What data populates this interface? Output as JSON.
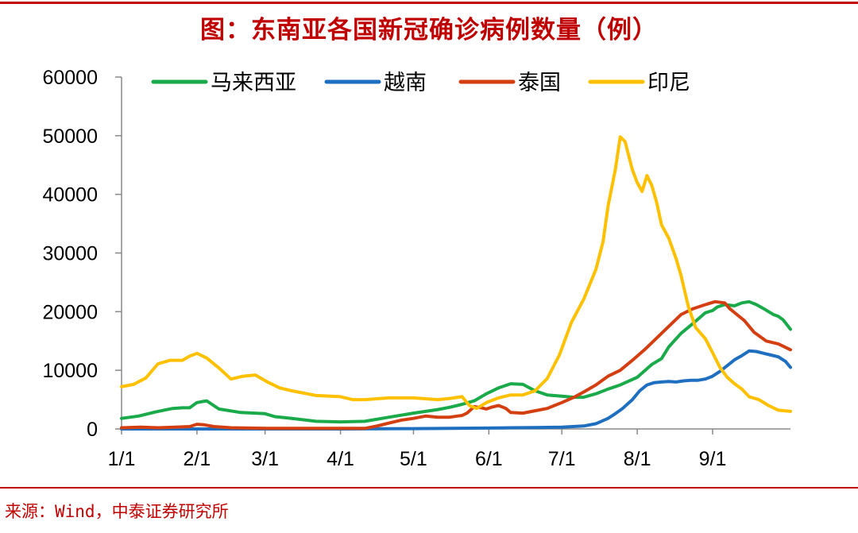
{
  "title": "图：东南亚各国新冠确诊病例数量（例）",
  "source": "来源：Wind，中泰证券研究所",
  "colors": {
    "accent": "#c00000",
    "马来西亚": "#1aaa4a",
    "越南": "#1f6fc0",
    "泰国": "#d43f12",
    "印尼": "#ffc000"
  },
  "chart_data": {
    "type": "line",
    "title": "图：东南亚各国新冠确诊病例数量（例）",
    "xlabel": "",
    "ylabel": "",
    "ylim": [
      0,
      60000
    ],
    "yticks": [
      0,
      10000,
      20000,
      30000,
      40000,
      50000,
      60000
    ],
    "ytick_labels": [
      "0",
      "10000",
      "20000",
      "30000",
      "40000",
      "50000",
      "60000"
    ],
    "xlim": [
      0,
      275
    ],
    "xticks": [
      0,
      31,
      59,
      90,
      120,
      151,
      181,
      212,
      243
    ],
    "xtick_labels": [
      "1/1",
      "2/1",
      "3/1",
      "4/1",
      "5/1",
      "6/1",
      "7/1",
      "8/1",
      "9/1"
    ],
    "legend_position": "top",
    "series": [
      {
        "name": "马来西亚",
        "color": "#1aaa4a",
        "x": [
          0,
          7,
          14,
          21,
          25,
          28,
          31,
          35,
          40,
          49,
          59,
          63,
          70,
          80,
          90,
          100,
          110,
          120,
          130,
          135,
          140,
          145,
          150,
          155,
          160,
          165,
          170,
          175,
          181,
          186,
          190,
          195,
          200,
          205,
          212,
          218,
          222,
          225,
          230,
          235,
          240,
          243,
          245,
          248,
          252,
          255,
          258,
          261,
          264,
          266,
          268,
          270,
          272,
          275
        ],
        "values": [
          1800,
          2200,
          2900,
          3500,
          3600,
          3600,
          4500,
          4800,
          3400,
          2800,
          2600,
          2100,
          1800,
          1300,
          1200,
          1300,
          2000,
          2700,
          3300,
          3700,
          4200,
          4800,
          6000,
          7000,
          7700,
          7600,
          6500,
          5800,
          5600,
          5400,
          5400,
          6000,
          6800,
          7500,
          8800,
          11000,
          12000,
          14000,
          16300,
          18000,
          19800,
          20200,
          20800,
          21200,
          21000,
          21500,
          21700,
          21200,
          20500,
          20000,
          19500,
          19200,
          18600,
          17000
        ]
      },
      {
        "name": "越南",
        "color": "#1f6fc0",
        "x": [
          0,
          30,
          60,
          90,
          120,
          150,
          160,
          170,
          181,
          190,
          195,
          200,
          203,
          206,
          210,
          213,
          216,
          219,
          222,
          225,
          228,
          231,
          234,
          237,
          240,
          243,
          246,
          249,
          252,
          255,
          258,
          261,
          264,
          267,
          270,
          273,
          275
        ],
        "values": [
          0,
          0,
          0,
          0,
          50,
          150,
          200,
          250,
          300,
          500,
          900,
          1800,
          2600,
          3500,
          5000,
          6500,
          7500,
          7900,
          8000,
          8100,
          8000,
          8200,
          8300,
          8300,
          8500,
          9000,
          9800,
          10800,
          11800,
          12500,
          13300,
          13200,
          12900,
          12600,
          12300,
          11500,
          10500
        ]
      },
      {
        "name": "泰国",
        "color": "#d43f12",
        "x": [
          0,
          8,
          15,
          22,
          28,
          31,
          34,
          38,
          45,
          60,
          90,
          100,
          105,
          110,
          115,
          120,
          125,
          130,
          135,
          138,
          140,
          142,
          145,
          148,
          150,
          152,
          155,
          158,
          160,
          165,
          170,
          175,
          181,
          186,
          190,
          195,
          200,
          205,
          210,
          215,
          220,
          225,
          230,
          235,
          240,
          244,
          248,
          250,
          253,
          256,
          260,
          265,
          270,
          275
        ],
        "values": [
          200,
          300,
          200,
          300,
          400,
          800,
          700,
          400,
          200,
          100,
          100,
          100,
          500,
          1000,
          1500,
          1800,
          2200,
          2000,
          2000,
          2200,
          2300,
          2700,
          3800,
          3600,
          3400,
          3700,
          4000,
          3500,
          2800,
          2700,
          3100,
          3500,
          4500,
          5400,
          6300,
          7500,
          9000,
          10000,
          11700,
          13500,
          15500,
          17500,
          19500,
          20500,
          21200,
          21700,
          21500,
          20500,
          19500,
          18500,
          16500,
          15000,
          14500,
          13500
        ]
      },
      {
        "name": "印尼",
        "color": "#ffc000",
        "x": [
          0,
          5,
          10,
          15,
          20,
          25,
          28,
          31,
          35,
          40,
          45,
          50,
          55,
          60,
          65,
          70,
          80,
          90,
          95,
          100,
          110,
          120,
          130,
          135,
          140,
          143,
          146,
          150,
          155,
          160,
          165,
          170,
          175,
          180,
          185,
          190,
          195,
          198,
          200,
          203,
          205,
          207,
          210,
          212,
          214,
          216,
          218,
          220,
          222,
          225,
          228,
          230,
          233,
          236,
          240,
          243,
          246,
          249,
          252,
          255,
          258,
          262,
          266,
          270,
          275
        ],
        "values": [
          7200,
          7600,
          8700,
          11100,
          11700,
          11700,
          12400,
          12900,
          12100,
          10400,
          8500,
          9000,
          9200,
          8000,
          7000,
          6500,
          5700,
          5500,
          5000,
          5000,
          5300,
          5300,
          5000,
          5200,
          5500,
          4000,
          3500,
          4500,
          5300,
          5800,
          5800,
          6500,
          8600,
          12600,
          18200,
          22100,
          27200,
          32000,
          38000,
          44200,
          49800,
          49000,
          44200,
          42000,
          40500,
          43200,
          41500,
          38600,
          34800,
          32500,
          29000,
          26200,
          20900,
          17300,
          15400,
          13000,
          10500,
          8800,
          7700,
          6800,
          5500,
          5000,
          4000,
          3200,
          3000
        ]
      }
    ]
  }
}
